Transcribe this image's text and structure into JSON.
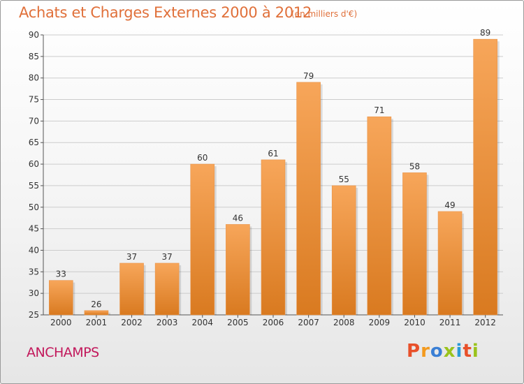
{
  "header": {
    "title": "Achats et Charges Externes 2000 à 2012",
    "unit": "(en milliers d'€)"
  },
  "footer": {
    "commune": "ANCHAMPS",
    "logo": "Proxiti",
    "logo_colors": [
      "#e8502a",
      "#f39a1e",
      "#3a7fd5",
      "#9ac31c",
      "#2a9bd7",
      "#e8502a",
      "#9ac31c"
    ]
  },
  "colors": {
    "bar_top": "#f7a65a",
    "bar_bottom": "#d97a20",
    "text": "#333333",
    "grid": "#cccccc"
  },
  "chart_data": {
    "type": "bar",
    "title": "Achats et Charges Externes 2000 à 2012",
    "categories": [
      "2000",
      "2001",
      "2002",
      "2003",
      "2004",
      "2005",
      "2006",
      "2007",
      "2008",
      "2009",
      "2010",
      "2011",
      "2012"
    ],
    "values": [
      33,
      26,
      37,
      37,
      60,
      46,
      61,
      79,
      55,
      71,
      58,
      49,
      89
    ],
    "data_labels": [
      "33",
      "26",
      "37",
      "37",
      "60",
      "46",
      "61",
      "79",
      "55",
      "71",
      "58",
      "49",
      "89"
    ],
    "y_ticks": [
      "25",
      "30",
      "35",
      "40",
      "45",
      "50",
      "55",
      "60",
      "65",
      "70",
      "75",
      "80",
      "85",
      "90"
    ],
    "ylim": [
      25,
      90
    ],
    "grid": "horizontal",
    "xlabel": "",
    "ylabel": ""
  }
}
